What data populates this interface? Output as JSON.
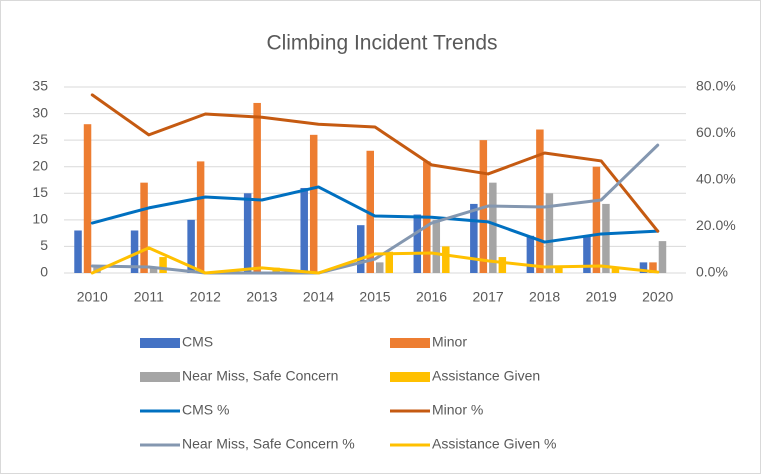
{
  "chart_data": {
    "type": "combo",
    "title": "Climbing Incident Trends",
    "categories": [
      "2010",
      "2011",
      "2012",
      "2013",
      "2014",
      "2015",
      "2016",
      "2017",
      "2018",
      "2019",
      "2020"
    ],
    "ylim": [
      0,
      35
    ],
    "yticks": [
      0,
      5,
      10,
      15,
      20,
      25,
      30,
      35
    ],
    "y2lim": [
      0,
      80
    ],
    "y2ticks": [
      {
        "value": 0,
        "label": "0.0%"
      },
      {
        "value": 20,
        "label": "20.0%"
      },
      {
        "value": 40,
        "label": "40.0%"
      },
      {
        "value": 60,
        "label": "60.0%"
      },
      {
        "value": 80,
        "label": "80.0%"
      }
    ],
    "legend": "bottom",
    "series": [
      {
        "name": "CMS",
        "type": "bar",
        "color": "#4472c4",
        "values": [
          8,
          8,
          10,
          15,
          16,
          9,
          11,
          13,
          7,
          7,
          2
        ]
      },
      {
        "name": "Minor",
        "type": "bar",
        "color": "#ed7d31",
        "values": [
          28,
          17,
          21,
          32,
          26,
          23,
          21,
          25,
          27,
          20,
          2
        ]
      },
      {
        "name": "Near Miss, Safe Concern",
        "type": "bar",
        "color": "#a5a5a5",
        "values": [
          1.5,
          1,
          0,
          0,
          0,
          2,
          10,
          17,
          15,
          13,
          6
        ]
      },
      {
        "name": "Assistance Given",
        "type": "bar",
        "color": "#ffc000",
        "values": [
          0,
          3,
          0,
          1,
          0,
          4,
          5,
          3,
          1,
          1,
          0
        ]
      },
      {
        "name": "CMS %",
        "type": "line",
        "axis": "y2",
        "color": "#0070c0",
        "values": [
          21.5,
          28,
          32.7,
          31.4,
          37,
          24.5,
          24,
          22,
          13.3,
          16.8,
          18
        ]
      },
      {
        "name": "Minor %",
        "type": "line",
        "axis": "y2",
        "color": "#c55a11",
        "values": [
          76.6,
          59.4,
          68.4,
          67,
          64,
          62.8,
          46.5,
          42.6,
          51.6,
          48.2,
          18
        ]
      },
      {
        "name": "Near Miss, Safe Concern %",
        "type": "line",
        "axis": "y2",
        "color": "#8497b0",
        "values": [
          3,
          2.6,
          0,
          0,
          0,
          6,
          21.5,
          28.8,
          28.4,
          31.4,
          55
        ]
      },
      {
        "name": "Assistance Given %",
        "type": "line",
        "axis": "y2",
        "color": "#ffc000",
        "values": [
          0,
          10.8,
          0,
          2.2,
          0,
          8.2,
          8.6,
          5.2,
          2.6,
          3,
          0.4
        ]
      }
    ]
  }
}
